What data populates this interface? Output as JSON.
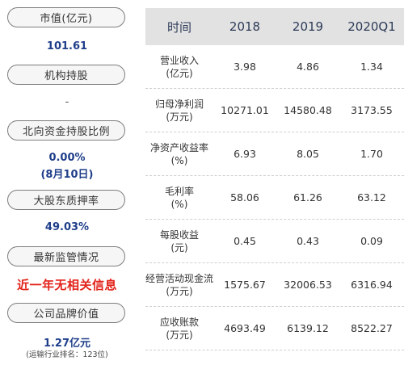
{
  "left": {
    "market_cap": {
      "label": "市值(亿元)",
      "value": "101.61"
    },
    "institution": {
      "label": "机构持股",
      "value": "-"
    },
    "northbound": {
      "label": "北向资金持股比例",
      "value": "0.00%",
      "date": "(8月10日)"
    },
    "pledge": {
      "label": "大股东质押率",
      "value": "49.03%"
    },
    "regulation": {
      "label": "最新监管情况",
      "value": "近一年无相关信息"
    },
    "brand": {
      "label": "公司品牌价值",
      "value": "1.27亿元",
      "rank": "(运输行业排名：123位)"
    }
  },
  "table": {
    "headers": [
      "时间",
      "2018",
      "2019",
      "2020Q1"
    ],
    "rows": [
      {
        "label1": "营业收入",
        "label2": "(亿元)",
        "values": [
          "3.98",
          "4.86",
          "1.34"
        ]
      },
      {
        "label1": "归母净利润",
        "label2": "(万元)",
        "values": [
          "10271.01",
          "14580.48",
          "3173.55"
        ]
      },
      {
        "label1": "净资产收益率",
        "label2": "(%)",
        "values": [
          "6.93",
          "8.05",
          "1.70"
        ]
      },
      {
        "label1": "毛利率",
        "label2": "(%)",
        "values": [
          "58.06",
          "61.26",
          "63.12"
        ]
      },
      {
        "label1": "每股收益",
        "label2": "(元)",
        "values": [
          "0.45",
          "0.43",
          "0.09"
        ]
      },
      {
        "label1": "经营活动现金流",
        "label2": "(万元)",
        "values": [
          "1575.67",
          "32006.53",
          "6316.94"
        ]
      },
      {
        "label1": "应收账款",
        "label2": "(万元)",
        "values": [
          "4693.49",
          "6139.12",
          "8522.27"
        ]
      }
    ]
  }
}
